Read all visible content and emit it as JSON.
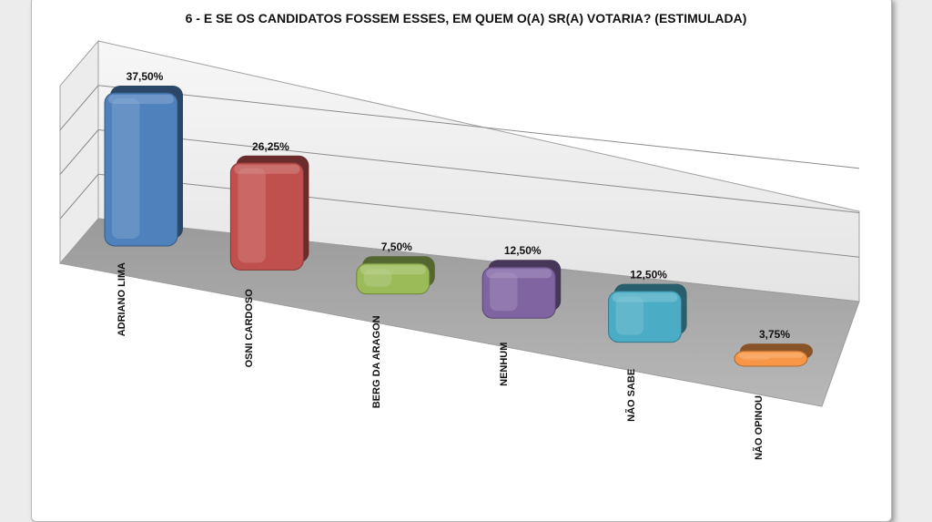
{
  "chart_data": {
    "type": "bar",
    "title": "6 - E SE OS CANDIDATOS FOSSEM ESSES, EM QUEM O(A) SR(A) VOTARIA? (ESTIMULADA)",
    "categories": [
      "ADRIANO LIMA",
      "OSNI CARDOSO",
      "BERG DA ARAGON",
      "NENHUM",
      "NÃO SABE",
      "NÃO OPINOU"
    ],
    "values": [
      37.5,
      26.25,
      7.5,
      12.5,
      12.5,
      3.75
    ],
    "labels": [
      "37,50%",
      "26,25%",
      "7,50%",
      "12,50%",
      "12,50%",
      "3,75%"
    ],
    "colors": [
      "#4f81bd",
      "#c0504d",
      "#9bbb59",
      "#8064a2",
      "#4bacc6",
      "#f79646"
    ],
    "ylim": [
      0,
      40
    ],
    "grid": true,
    "legend": "none"
  }
}
